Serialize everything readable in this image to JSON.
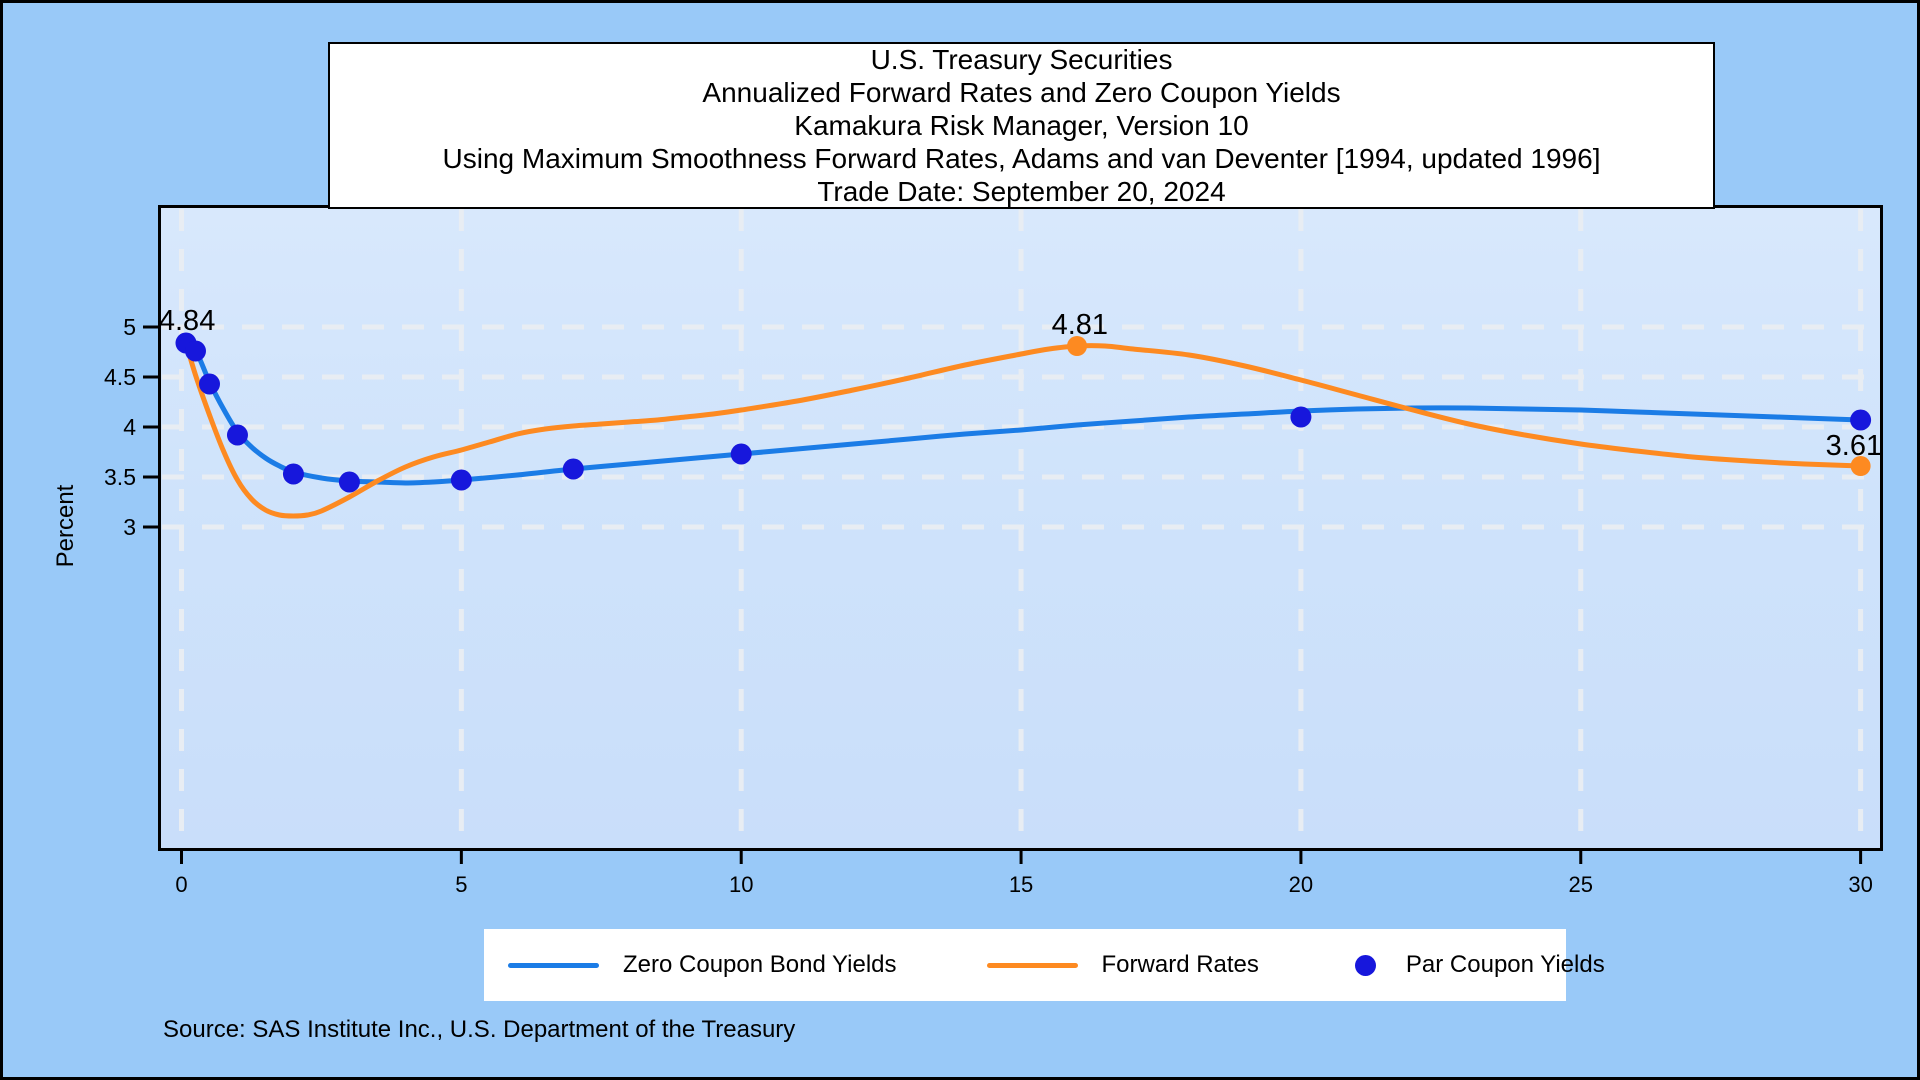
{
  "header": {
    "title_lines": [
      "U.S. Treasury Securities",
      "Annualized Forward Rates and Zero Coupon Yields",
      "Kamakura Risk Manager, Version 10",
      "Using Maximum Smoothness Forward Rates, Adams and van Deventer [1994, updated 1996]",
      "Trade Date: September 20, 2024"
    ]
  },
  "axes": {
    "ylabel": "Percent"
  },
  "legend": {
    "items": [
      {
        "label": "Zero Coupon Bond Yields",
        "swatch": "line",
        "color": "#1b7ce6"
      },
      {
        "label": "Forward Rates",
        "swatch": "line",
        "color": "#fd8a21"
      },
      {
        "label": "Par Coupon Yields",
        "swatch": "dot",
        "color": "#1717dc"
      }
    ]
  },
  "source_note": "Source: SAS Institute Inc., U.S. Department of the Treasury",
  "colors": {
    "page_background": "#99c9f8",
    "plot_background_top": "#d8e8fc",
    "plot_background_bottom": "#c9defa",
    "gridline": "#e8edf3",
    "axis": "#000000",
    "zero_coupon_line": "#1b7ce6",
    "forward_rate_line": "#fd8a21",
    "par_coupon_dot": "#1717dc"
  },
  "chart_data": {
    "type": "line",
    "title": "U.S. Treasury Securities - Annualized Forward Rates and Zero Coupon Yields - Kamakura Risk Manager, Version 10 - Using Maximum Smoothness Forward Rates, Adams and van Deventer [1994, updated 1996] - Trade Date: September 20, 2024",
    "xlabel": "",
    "ylabel": "Percent",
    "xlim": [
      -0.42,
      30.4
    ],
    "ylim": [
      -0.24,
      6.22
    ],
    "x_ticks": [
      0,
      5,
      10,
      15,
      20,
      25,
      30
    ],
    "y_ticks": [
      3,
      3.5,
      4,
      4.5,
      5
    ],
    "grid": "white dashed lines at every x tick (full height) and every y tick",
    "legend_position": "bottom",
    "series": [
      {
        "name": "Zero Coupon Bond Yields",
        "type": "line",
        "color": "#1b7ce6",
        "points": [
          [
            0.08,
            4.84
          ],
          [
            0.25,
            4.77
          ],
          [
            0.5,
            4.45
          ],
          [
            0.75,
            4.18
          ],
          [
            1,
            3.95
          ],
          [
            1.25,
            3.8
          ],
          [
            1.5,
            3.69
          ],
          [
            1.75,
            3.61
          ],
          [
            2,
            3.55
          ],
          [
            2.5,
            3.49
          ],
          [
            3,
            3.46
          ],
          [
            3.5,
            3.45
          ],
          [
            4,
            3.44
          ],
          [
            4.5,
            3.45
          ],
          [
            5,
            3.47
          ],
          [
            6,
            3.52
          ],
          [
            7,
            3.58
          ],
          [
            8,
            3.63
          ],
          [
            9,
            3.68
          ],
          [
            10,
            3.73
          ],
          [
            11,
            3.78
          ],
          [
            12,
            3.83
          ],
          [
            13,
            3.88
          ],
          [
            14,
            3.93
          ],
          [
            15,
            3.97
          ],
          [
            16,
            4.02
          ],
          [
            17,
            4.06
          ],
          [
            18,
            4.1
          ],
          [
            19,
            4.13
          ],
          [
            20,
            4.16
          ],
          [
            21,
            4.18
          ],
          [
            22,
            4.19
          ],
          [
            23,
            4.19
          ],
          [
            24,
            4.18
          ],
          [
            25,
            4.17
          ],
          [
            26,
            4.15
          ],
          [
            27,
            4.13
          ],
          [
            28,
            4.11
          ],
          [
            29,
            4.09
          ],
          [
            30,
            4.07
          ]
        ]
      },
      {
        "name": "Forward Rates",
        "type": "line",
        "color": "#fd8a21",
        "points": [
          [
            0.08,
            4.84
          ],
          [
            0.25,
            4.52
          ],
          [
            0.5,
            4.12
          ],
          [
            0.75,
            3.76
          ],
          [
            1,
            3.47
          ],
          [
            1.25,
            3.28
          ],
          [
            1.5,
            3.17
          ],
          [
            1.75,
            3.12
          ],
          [
            2,
            3.11
          ],
          [
            2.25,
            3.12
          ],
          [
            2.5,
            3.16
          ],
          [
            3,
            3.3
          ],
          [
            3.5,
            3.46
          ],
          [
            4,
            3.6
          ],
          [
            4.5,
            3.7
          ],
          [
            5,
            3.77
          ],
          [
            5.5,
            3.85
          ],
          [
            6,
            3.93
          ],
          [
            6.5,
            3.98
          ],
          [
            7,
            4.01
          ],
          [
            7.5,
            4.03
          ],
          [
            8,
            4.05
          ],
          [
            8.5,
            4.07
          ],
          [
            9,
            4.1
          ],
          [
            9.5,
            4.13
          ],
          [
            10,
            4.17
          ],
          [
            11,
            4.26
          ],
          [
            12,
            4.37
          ],
          [
            13,
            4.49
          ],
          [
            14,
            4.62
          ],
          [
            15,
            4.73
          ],
          [
            15.5,
            4.78
          ],
          [
            16,
            4.81
          ],
          [
            16.5,
            4.81
          ],
          [
            17,
            4.78
          ],
          [
            18,
            4.72
          ],
          [
            19,
            4.61
          ],
          [
            20,
            4.47
          ],
          [
            21,
            4.32
          ],
          [
            22,
            4.17
          ],
          [
            23,
            4.03
          ],
          [
            24,
            3.92
          ],
          [
            25,
            3.83
          ],
          [
            26,
            3.76
          ],
          [
            27,
            3.7
          ],
          [
            28,
            3.66
          ],
          [
            29,
            3.63
          ],
          [
            30,
            3.61
          ]
        ],
        "markers": [
          [
            16,
            4.81
          ],
          [
            30,
            3.61
          ]
        ]
      },
      {
        "name": "Par Coupon Yields",
        "type": "scatter",
        "color": "#1717dc",
        "points": [
          [
            0.08,
            4.84
          ],
          [
            0.25,
            4.76
          ],
          [
            0.5,
            4.43
          ],
          [
            1,
            3.92
          ],
          [
            2,
            3.53
          ],
          [
            3,
            3.45
          ],
          [
            5,
            3.47
          ],
          [
            7,
            3.58
          ],
          [
            10,
            3.73
          ],
          [
            20,
            4.1
          ],
          [
            30,
            4.07
          ]
        ]
      }
    ],
    "annotations": [
      {
        "text": "4.84",
        "x": 0.1,
        "y": 5.07
      },
      {
        "text": "4.81",
        "x": 16.05,
        "y": 5.03
      },
      {
        "text": "3.61",
        "x": 29.88,
        "y": 3.82
      }
    ]
  }
}
